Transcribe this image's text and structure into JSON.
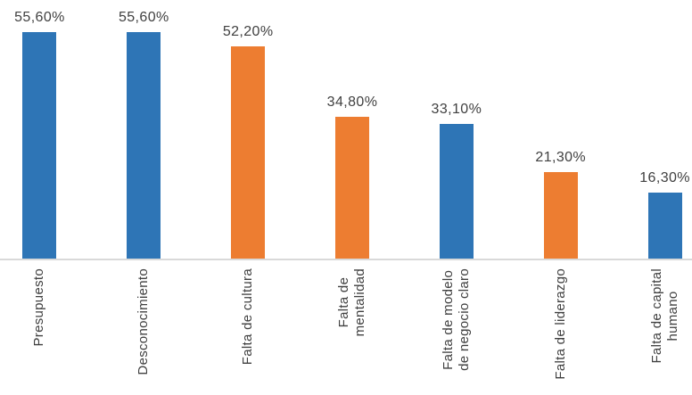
{
  "chart_data": {
    "type": "bar",
    "categories": [
      "Presupuesto",
      "Desconocimiento",
      "Falta de cultura",
      "Falta de mentalidad",
      "Falta de modelo de negocio claro",
      "Falta de liderazgo",
      "Falta de capital humano"
    ],
    "category_display_lines": [
      [
        "Presupuesto"
      ],
      [
        "Desconocimiento"
      ],
      [
        "Falta de cultura"
      ],
      [
        "Falta de",
        "mentalidad"
      ],
      [
        "Falta de modelo",
        "de negocio claro"
      ],
      [
        "Falta de liderazgo"
      ],
      [
        "Falta de capital",
        "humano"
      ]
    ],
    "values": [
      55.6,
      55.6,
      52.2,
      34.8,
      33.1,
      21.3,
      16.3
    ],
    "value_labels": [
      "55,60%",
      "55,60%",
      "52,20%",
      "34,80%",
      "33,10%",
      "21,30%",
      "16,30%"
    ],
    "bar_colors": [
      "blue",
      "blue",
      "orange",
      "orange",
      "blue",
      "orange",
      "blue"
    ],
    "ylim": [
      0,
      60
    ],
    "grid": false,
    "legend": false,
    "value_axis_visible": false,
    "category_label_rotation_deg": 90
  },
  "colors": {
    "blue": "#2E75B6",
    "orange": "#ED7D31",
    "axis_line": "#D9D9D9",
    "text": "#404040"
  }
}
